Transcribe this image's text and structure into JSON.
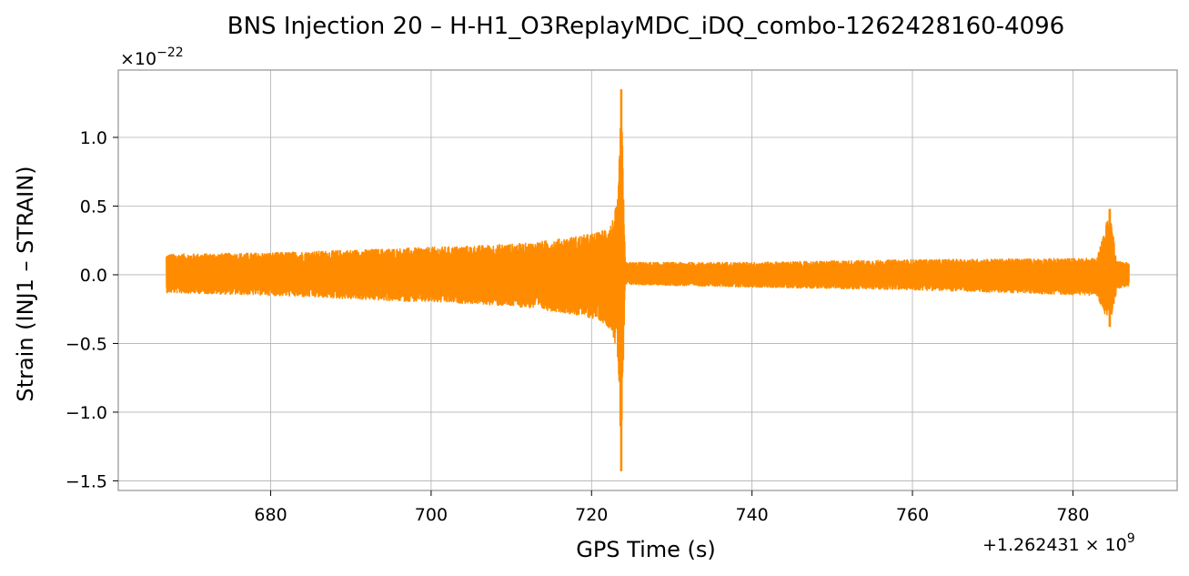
{
  "chart_data": {
    "type": "line",
    "title": "BNS Injection 20 – H-H1_O3ReplayMDC_iDQ_combo-1262428160-4096",
    "xlabel": "GPS Time (s)",
    "ylabel": "Strain (INJ1 – STRAIN)",
    "x_offset_text": {
      "prefix": "+1.262431",
      "times": "×",
      "base": "10",
      "exponent": "9"
    },
    "y_multiplier_text": {
      "times": "×",
      "base": "10",
      "exponent": "−22"
    },
    "x_ticks": [
      680,
      700,
      720,
      740,
      760,
      780
    ],
    "x_tick_labels": [
      "680",
      "700",
      "720",
      "740",
      "760",
      "780"
    ],
    "y_ticks": [
      -1.5,
      -1.0,
      -0.5,
      0.0,
      0.5,
      1.0
    ],
    "y_tick_labels": [
      "−1.5",
      "−1.0",
      "−0.5",
      "0.0",
      "0.5",
      "1.0"
    ],
    "xlim": [
      661,
      793
    ],
    "ylim": [
      -1.57,
      1.49
    ],
    "grid": true,
    "series": [
      {
        "color": "#ff8c00",
        "x_start": 667,
        "x_end": 787,
        "envelope": [
          {
            "x": 667,
            "upper": 0.15,
            "lower": -0.13
          },
          {
            "x": 680,
            "upper": 0.16,
            "lower": -0.15
          },
          {
            "x": 695,
            "upper": 0.19,
            "lower": -0.19
          },
          {
            "x": 705,
            "upper": 0.21,
            "lower": -0.21
          },
          {
            "x": 712,
            "upper": 0.23,
            "lower": -0.24
          },
          {
            "x": 717,
            "upper": 0.27,
            "lower": -0.28
          },
          {
            "x": 721,
            "upper": 0.31,
            "lower": -0.33
          },
          {
            "x": 722.5,
            "upper": 0.38,
            "lower": -0.4
          },
          {
            "x": 723.3,
            "upper": 0.55,
            "lower": -0.6
          },
          {
            "x": 723.7,
            "upper": 1.35,
            "lower": -1.43
          },
          {
            "x": 724.2,
            "upper": 0.09,
            "lower": -0.07
          },
          {
            "x": 740,
            "upper": 0.09,
            "lower": -0.09
          },
          {
            "x": 760,
            "upper": 0.11,
            "lower": -0.11
          },
          {
            "x": 783,
            "upper": 0.12,
            "lower": -0.15
          },
          {
            "x": 784.6,
            "upper": 0.48,
            "lower": -0.38
          },
          {
            "x": 785.5,
            "upper": 0.1,
            "lower": -0.1
          },
          {
            "x": 787,
            "upper": 0.09,
            "lower": -0.08
          }
        ]
      }
    ]
  }
}
